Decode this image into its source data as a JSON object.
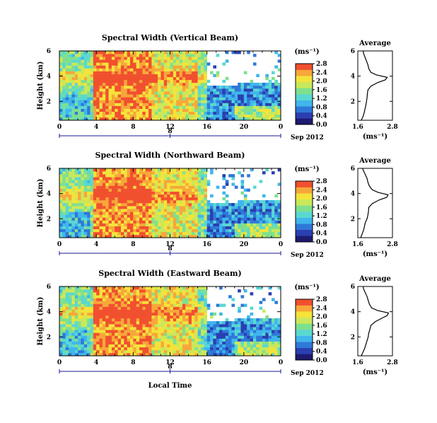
{
  "figure": {
    "bottom_label": "Local Time",
    "colors": [
      "#1e1a6e",
      "#2a3fb0",
      "#2f78d8",
      "#3fb6ec",
      "#59d8d2",
      "#7ee08e",
      "#c9e85b",
      "#f4e33a",
      "#f7a73a",
      "#f1502f"
    ]
  },
  "chart_data": [
    {
      "type": "heatmap",
      "title": "Spectral Width (Vertical Beam)",
      "ylabel": "Height (km)",
      "y_ticks": [
        "2",
        "4",
        "6"
      ],
      "ylim": [
        0.5,
        6
      ],
      "x_ticks": [
        "0",
        "4",
        "8",
        "12",
        "16",
        "20",
        "0"
      ],
      "xlim": [
        0,
        24
      ],
      "day_label": "8",
      "date_label": "Sep 2012",
      "colorbar": {
        "unit": "(ms⁻¹)",
        "ticks": [
          "0.0",
          "0.4",
          "0.8",
          "1.2",
          "1.6",
          "2.0",
          "2.4",
          "2.8"
        ]
      },
      "average": {
        "title": "Average",
        "xlabel": "(ms⁻¹)",
        "x_ticks": [
          "1.6",
          "2.8"
        ],
        "xlim": [
          1.6,
          2.8
        ],
        "y_ticks": [
          "2",
          "4",
          "6"
        ],
        "ylim": [
          0.5,
          6
        ],
        "heights": [
          0.5,
          0.8,
          1.1,
          1.4,
          1.7,
          2.0,
          2.3,
          2.6,
          2.9,
          3.2,
          3.5,
          3.7,
          3.9,
          4.1,
          4.3,
          4.6,
          4.9,
          5.2,
          5.5,
          5.8,
          6.0
        ],
        "values": [
          1.72,
          1.78,
          1.82,
          1.85,
          1.88,
          1.9,
          1.92,
          1.93,
          1.95,
          2.05,
          2.3,
          2.55,
          2.62,
          2.25,
          2.05,
          1.98,
          1.95,
          1.9,
          1.85,
          1.8,
          1.78
        ]
      }
    },
    {
      "type": "heatmap",
      "title": "Spectral Width (Northward Beam)",
      "ylabel": "Height (km)",
      "y_ticks": [
        "2",
        "4",
        "6"
      ],
      "ylim": [
        0.5,
        6
      ],
      "x_ticks": [
        "0",
        "4",
        "8",
        "12",
        "16",
        "20",
        "0"
      ],
      "xlim": [
        0,
        24
      ],
      "day_label": "8",
      "date_label": "Sep 2012",
      "colorbar": {
        "unit": "(ms⁻¹)",
        "ticks": [
          "0.0",
          "0.4",
          "0.8",
          "1.2",
          "1.6",
          "2.0",
          "2.4",
          "2.8"
        ]
      },
      "average": {
        "title": "Average",
        "xlabel": "(ms⁻¹)",
        "x_ticks": [
          "1.6",
          "2.8"
        ],
        "xlim": [
          1.6,
          2.8
        ],
        "y_ticks": [
          "2",
          "4",
          "6"
        ],
        "ylim": [
          0.5,
          6
        ],
        "heights": [
          0.5,
          0.8,
          1.1,
          1.4,
          1.7,
          2.0,
          2.3,
          2.6,
          2.9,
          3.2,
          3.5,
          3.7,
          3.9,
          4.1,
          4.3,
          4.6,
          4.9,
          5.2,
          5.5,
          5.8,
          6.0
        ],
        "values": [
          1.7,
          1.75,
          1.8,
          1.83,
          1.86,
          1.92,
          1.95,
          1.97,
          1.98,
          2.1,
          2.35,
          2.6,
          2.65,
          2.3,
          2.1,
          2.0,
          1.95,
          1.92,
          1.86,
          1.8,
          1.76
        ]
      }
    },
    {
      "type": "heatmap",
      "title": "Spectral Width (Eastward Beam)",
      "ylabel": "Height (km)",
      "y_ticks": [
        "2",
        "4",
        "6"
      ],
      "ylim": [
        0.5,
        6
      ],
      "x_ticks": [
        "0",
        "4",
        "8",
        "12",
        "16",
        "20",
        "0"
      ],
      "xlim": [
        0,
        24
      ],
      "day_label": "8",
      "date_label": "Sep 2012",
      "colorbar": {
        "unit": "(ms⁻¹)",
        "ticks": [
          "0.0",
          "0.4",
          "0.8",
          "1.2",
          "1.6",
          "2.0",
          "2.4",
          "2.8"
        ]
      },
      "average": {
        "title": "Average",
        "xlabel": "(ms⁻¹)",
        "x_ticks": [
          "1.6",
          "2.8"
        ],
        "xlim": [
          1.6,
          2.8
        ],
        "y_ticks": [
          "2",
          "4",
          "6"
        ],
        "ylim": [
          0.5,
          6
        ],
        "heights": [
          0.5,
          0.8,
          1.1,
          1.4,
          1.7,
          2.0,
          2.3,
          2.6,
          2.9,
          3.2,
          3.5,
          3.7,
          3.9,
          4.1,
          4.3,
          4.6,
          4.9,
          5.2,
          5.5,
          5.8,
          6.0
        ],
        "values": [
          1.72,
          1.78,
          1.84,
          1.88,
          1.92,
          1.96,
          1.98,
          2.02,
          2.05,
          2.2,
          2.45,
          2.62,
          2.66,
          2.28,
          2.08,
          2.0,
          1.96,
          1.92,
          1.86,
          1.8,
          1.78
        ]
      }
    }
  ]
}
